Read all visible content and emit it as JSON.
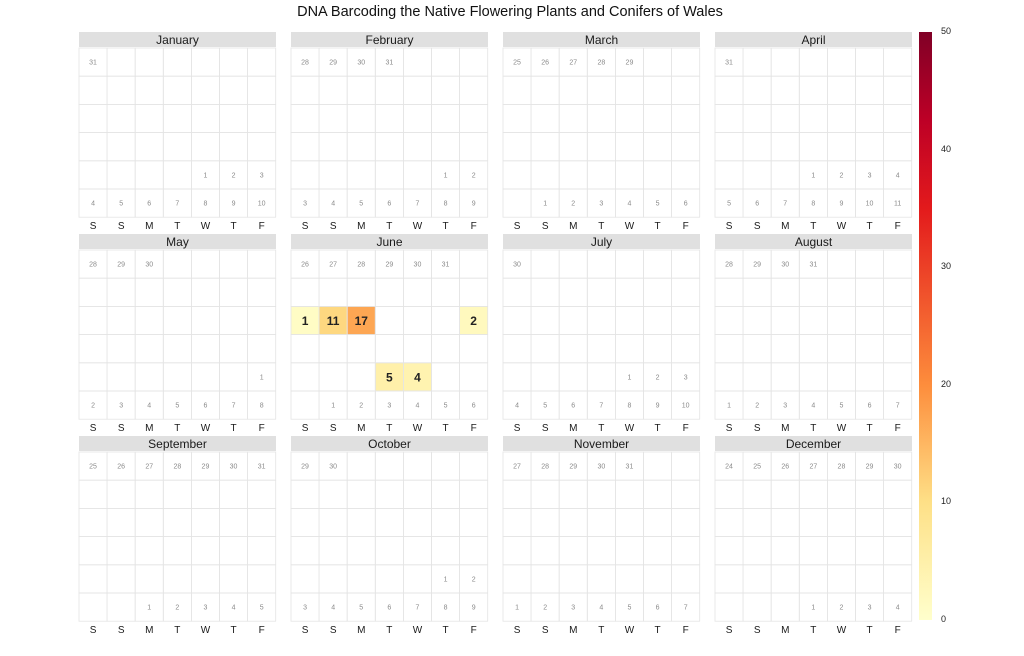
{
  "title": "DNA Barcoding the Native Flowering Plants and Conifers of Wales",
  "weekday_labels": [
    "S",
    "S",
    "M",
    "T",
    "W",
    "T",
    "F"
  ],
  "legend": {
    "ticks": [
      "50",
      "40",
      "30",
      "20",
      "10",
      "0"
    ],
    "min": 0,
    "max": 50,
    "colors": [
      "#ffffcc",
      "#fee087",
      "#fd8d3c",
      "#e31a1c",
      "#bd0026",
      "#800026"
    ]
  },
  "chart_data": {
    "type": "heatmap",
    "title": "DNA Barcoding the Native Flowering Plants and Conifers of Wales",
    "color_range": [
      0,
      50
    ],
    "months": [
      {
        "name": "January",
        "dates": [
          {
            "day": "31",
            "row": 0,
            "col": 0
          },
          {
            "day": "1",
            "row": 4,
            "col": 4
          },
          {
            "day": "2",
            "row": 4,
            "col": 5
          },
          {
            "day": "3",
            "row": 4,
            "col": 6
          },
          {
            "day": "4",
            "row": 5,
            "col": 0
          },
          {
            "day": "5",
            "row": 5,
            "col": 1
          },
          {
            "day": "6",
            "row": 5,
            "col": 2
          },
          {
            "day": "7",
            "row": 5,
            "col": 3
          },
          {
            "day": "8",
            "row": 5,
            "col": 4
          },
          {
            "day": "9",
            "row": 5,
            "col": 5
          },
          {
            "day": "10",
            "row": 5,
            "col": 6
          }
        ],
        "values": []
      },
      {
        "name": "February",
        "dates": [
          {
            "day": "28",
            "row": 0,
            "col": 0
          },
          {
            "day": "29",
            "row": 0,
            "col": 1
          },
          {
            "day": "30",
            "row": 0,
            "col": 2
          },
          {
            "day": "31",
            "row": 0,
            "col": 3
          },
          {
            "day": "1",
            "row": 4,
            "col": 5
          },
          {
            "day": "2",
            "row": 4,
            "col": 6
          },
          {
            "day": "3",
            "row": 5,
            "col": 0
          },
          {
            "day": "4",
            "row": 5,
            "col": 1
          },
          {
            "day": "5",
            "row": 5,
            "col": 2
          },
          {
            "day": "6",
            "row": 5,
            "col": 3
          },
          {
            "day": "7",
            "row": 5,
            "col": 4
          },
          {
            "day": "8",
            "row": 5,
            "col": 5
          },
          {
            "day": "9",
            "row": 5,
            "col": 6
          }
        ],
        "values": []
      },
      {
        "name": "March",
        "dates": [
          {
            "day": "25",
            "row": 0,
            "col": 0
          },
          {
            "day": "26",
            "row": 0,
            "col": 1
          },
          {
            "day": "27",
            "row": 0,
            "col": 2
          },
          {
            "day": "28",
            "row": 0,
            "col": 3
          },
          {
            "day": "29",
            "row": 0,
            "col": 4
          },
          {
            "day": "1",
            "row": 5,
            "col": 1
          },
          {
            "day": "2",
            "row": 5,
            "col": 2
          },
          {
            "day": "3",
            "row": 5,
            "col": 3
          },
          {
            "day": "4",
            "row": 5,
            "col": 4
          },
          {
            "day": "5",
            "row": 5,
            "col": 5
          },
          {
            "day": "6",
            "row": 5,
            "col": 6
          }
        ],
        "values": []
      },
      {
        "name": "April",
        "dates": [
          {
            "day": "31",
            "row": 0,
            "col": 0
          },
          {
            "day": "1",
            "row": 4,
            "col": 3
          },
          {
            "day": "2",
            "row": 4,
            "col": 4
          },
          {
            "day": "3",
            "row": 4,
            "col": 5
          },
          {
            "day": "4",
            "row": 4,
            "col": 6
          },
          {
            "day": "5",
            "row": 5,
            "col": 0
          },
          {
            "day": "6",
            "row": 5,
            "col": 1
          },
          {
            "day": "7",
            "row": 5,
            "col": 2
          },
          {
            "day": "8",
            "row": 5,
            "col": 3
          },
          {
            "day": "9",
            "row": 5,
            "col": 4
          },
          {
            "day": "10",
            "row": 5,
            "col": 5
          },
          {
            "day": "11",
            "row": 5,
            "col": 6
          }
        ],
        "values": []
      },
      {
        "name": "May",
        "dates": [
          {
            "day": "28",
            "row": 0,
            "col": 0
          },
          {
            "day": "29",
            "row": 0,
            "col": 1
          },
          {
            "day": "30",
            "row": 0,
            "col": 2
          },
          {
            "day": "1",
            "row": 4,
            "col": 6
          },
          {
            "day": "2",
            "row": 5,
            "col": 0
          },
          {
            "day": "3",
            "row": 5,
            "col": 1
          },
          {
            "day": "4",
            "row": 5,
            "col": 2
          },
          {
            "day": "5",
            "row": 5,
            "col": 3
          },
          {
            "day": "6",
            "row": 5,
            "col": 4
          },
          {
            "day": "7",
            "row": 5,
            "col": 5
          },
          {
            "day": "8",
            "row": 5,
            "col": 6
          }
        ],
        "values": []
      },
      {
        "name": "June",
        "dates": [
          {
            "day": "26",
            "row": 0,
            "col": 0
          },
          {
            "day": "27",
            "row": 0,
            "col": 1
          },
          {
            "day": "28",
            "row": 0,
            "col": 2
          },
          {
            "day": "29",
            "row": 0,
            "col": 3
          },
          {
            "day": "30",
            "row": 0,
            "col": 4
          },
          {
            "day": "31",
            "row": 0,
            "col": 5
          },
          {
            "day": "1",
            "row": 5,
            "col": 1
          },
          {
            "day": "2",
            "row": 5,
            "col": 2
          },
          {
            "day": "3",
            "row": 5,
            "col": 3
          },
          {
            "day": "4",
            "row": 5,
            "col": 4
          },
          {
            "day": "5",
            "row": 5,
            "col": 5
          },
          {
            "day": "6",
            "row": 5,
            "col": 6
          }
        ],
        "values": [
          {
            "row": 2,
            "col": 0,
            "value": 1
          },
          {
            "row": 2,
            "col": 1,
            "value": 11
          },
          {
            "row": 2,
            "col": 2,
            "value": 17
          },
          {
            "row": 2,
            "col": 6,
            "value": 2
          },
          {
            "row": 4,
            "col": 3,
            "value": 5
          },
          {
            "row": 4,
            "col": 4,
            "value": 4
          }
        ]
      },
      {
        "name": "July",
        "dates": [
          {
            "day": "30",
            "row": 0,
            "col": 0
          },
          {
            "day": "1",
            "row": 4,
            "col": 4
          },
          {
            "day": "2",
            "row": 4,
            "col": 5
          },
          {
            "day": "3",
            "row": 4,
            "col": 6
          },
          {
            "day": "4",
            "row": 5,
            "col": 0
          },
          {
            "day": "5",
            "row": 5,
            "col": 1
          },
          {
            "day": "6",
            "row": 5,
            "col": 2
          },
          {
            "day": "7",
            "row": 5,
            "col": 3
          },
          {
            "day": "8",
            "row": 5,
            "col": 4
          },
          {
            "day": "9",
            "row": 5,
            "col": 5
          },
          {
            "day": "10",
            "row": 5,
            "col": 6
          }
        ],
        "values": []
      },
      {
        "name": "August",
        "dates": [
          {
            "day": "28",
            "row": 0,
            "col": 0
          },
          {
            "day": "29",
            "row": 0,
            "col": 1
          },
          {
            "day": "30",
            "row": 0,
            "col": 2
          },
          {
            "day": "31",
            "row": 0,
            "col": 3
          },
          {
            "day": "1",
            "row": 5,
            "col": 0
          },
          {
            "day": "2",
            "row": 5,
            "col": 1
          },
          {
            "day": "3",
            "row": 5,
            "col": 2
          },
          {
            "day": "4",
            "row": 5,
            "col": 3
          },
          {
            "day": "5",
            "row": 5,
            "col": 4
          },
          {
            "day": "6",
            "row": 5,
            "col": 5
          },
          {
            "day": "7",
            "row": 5,
            "col": 6
          }
        ],
        "values": []
      },
      {
        "name": "September",
        "dates": [
          {
            "day": "25",
            "row": 0,
            "col": 0
          },
          {
            "day": "26",
            "row": 0,
            "col": 1
          },
          {
            "day": "27",
            "row": 0,
            "col": 2
          },
          {
            "day": "28",
            "row": 0,
            "col": 3
          },
          {
            "day": "29",
            "row": 0,
            "col": 4
          },
          {
            "day": "30",
            "row": 0,
            "col": 5
          },
          {
            "day": "31",
            "row": 0,
            "col": 6
          },
          {
            "day": "1",
            "row": 5,
            "col": 2
          },
          {
            "day": "2",
            "row": 5,
            "col": 3
          },
          {
            "day": "3",
            "row": 5,
            "col": 4
          },
          {
            "day": "4",
            "row": 5,
            "col": 5
          },
          {
            "day": "5",
            "row": 5,
            "col": 6
          }
        ],
        "values": []
      },
      {
        "name": "October",
        "dates": [
          {
            "day": "29",
            "row": 0,
            "col": 0
          },
          {
            "day": "30",
            "row": 0,
            "col": 1
          },
          {
            "day": "1",
            "row": 4,
            "col": 5
          },
          {
            "day": "2",
            "row": 4,
            "col": 6
          },
          {
            "day": "3",
            "row": 5,
            "col": 0
          },
          {
            "day": "4",
            "row": 5,
            "col": 1
          },
          {
            "day": "5",
            "row": 5,
            "col": 2
          },
          {
            "day": "6",
            "row": 5,
            "col": 3
          },
          {
            "day": "7",
            "row": 5,
            "col": 4
          },
          {
            "day": "8",
            "row": 5,
            "col": 5
          },
          {
            "day": "9",
            "row": 5,
            "col": 6
          }
        ],
        "values": []
      },
      {
        "name": "November",
        "dates": [
          {
            "day": "27",
            "row": 0,
            "col": 0
          },
          {
            "day": "28",
            "row": 0,
            "col": 1
          },
          {
            "day": "29",
            "row": 0,
            "col": 2
          },
          {
            "day": "30",
            "row": 0,
            "col": 3
          },
          {
            "day": "31",
            "row": 0,
            "col": 4
          },
          {
            "day": "1",
            "row": 5,
            "col": 0
          },
          {
            "day": "2",
            "row": 5,
            "col": 1
          },
          {
            "day": "3",
            "row": 5,
            "col": 2
          },
          {
            "day": "4",
            "row": 5,
            "col": 3
          },
          {
            "day": "5",
            "row": 5,
            "col": 4
          },
          {
            "day": "6",
            "row": 5,
            "col": 5
          },
          {
            "day": "7",
            "row": 5,
            "col": 6
          }
        ],
        "values": []
      },
      {
        "name": "December",
        "dates": [
          {
            "day": "24",
            "row": 0,
            "col": 0
          },
          {
            "day": "25",
            "row": 0,
            "col": 1
          },
          {
            "day": "26",
            "row": 0,
            "col": 2
          },
          {
            "day": "27",
            "row": 0,
            "col": 3
          },
          {
            "day": "28",
            "row": 0,
            "col": 4
          },
          {
            "day": "29",
            "row": 0,
            "col": 5
          },
          {
            "day": "30",
            "row": 0,
            "col": 6
          },
          {
            "day": "1",
            "row": 5,
            "col": 3
          },
          {
            "day": "2",
            "row": 5,
            "col": 4
          },
          {
            "day": "3",
            "row": 5,
            "col": 5
          },
          {
            "day": "4",
            "row": 5,
            "col": 6
          }
        ],
        "values": []
      }
    ]
  }
}
